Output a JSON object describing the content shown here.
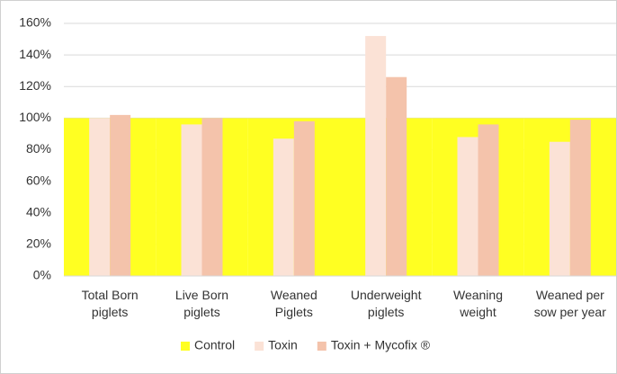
{
  "chart_data": {
    "type": "bar",
    "categories": [
      "Total  Born\npiglets",
      "Live Born\npiglets",
      "Weaned\nPiglets",
      "Underweight\npiglets",
      "Weaning\nweight",
      "Weaned per\nsow per year"
    ],
    "series": [
      {
        "name": "Control",
        "color": "#ffff22",
        "values": [
          100,
          100,
          100,
          100,
          100,
          100
        ]
      },
      {
        "name": "Toxin",
        "color": "#fbe2d6",
        "values": [
          100,
          96,
          87,
          152,
          88,
          85
        ]
      },
      {
        "name": "Toxin + Mycofix ®",
        "color": "#f4c3ab",
        "values": [
          102,
          100,
          98,
          126,
          96,
          99
        ]
      }
    ],
    "ylim": [
      0,
      160
    ],
    "yticks": [
      {
        "value": 0,
        "label": "0%"
      },
      {
        "value": 20,
        "label": "20%"
      },
      {
        "value": 40,
        "label": "40%"
      },
      {
        "value": 60,
        "label": "60%"
      },
      {
        "value": 80,
        "label": "80%"
      },
      {
        "value": 100,
        "label": "100%"
      },
      {
        "value": 120,
        "label": "120%"
      },
      {
        "value": 140,
        "label": "140%"
      },
      {
        "value": 160,
        "label": "160%"
      }
    ],
    "grid": true,
    "legend": "bottom"
  }
}
